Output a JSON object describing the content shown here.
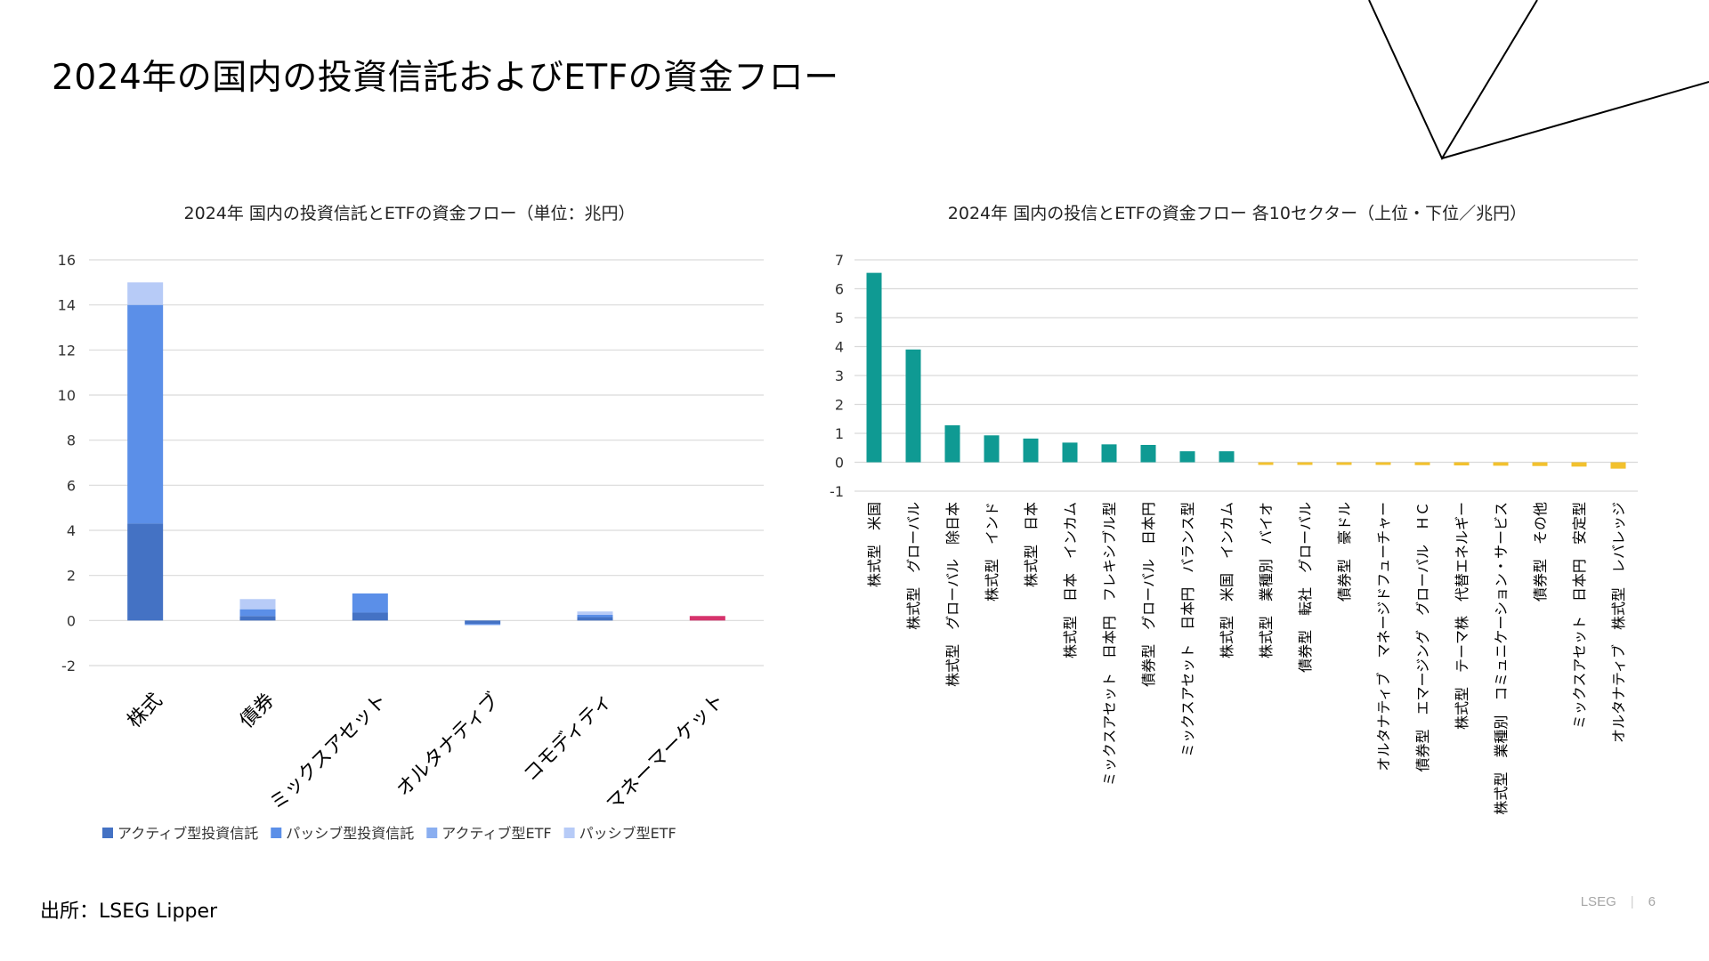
{
  "page": {
    "title": "2024年の国内の投資信託およびETFの資金フロー",
    "source": "出所：LSEG Lipper",
    "footer_brand": "LSEG",
    "footer_separator": "|",
    "page_number": "6"
  },
  "chart_data": [
    {
      "type": "bar",
      "stacked": true,
      "title": "2024年 国内の投資信託とETFの資金フロー（単位：兆円）",
      "xlabel": "",
      "ylabel": "",
      "ylim": [
        -2,
        16
      ],
      "yticks": [
        -2,
        0,
        2,
        4,
        6,
        8,
        10,
        12,
        14,
        16
      ],
      "grid": true,
      "legend_position": "bottom",
      "categories": [
        "株式",
        "債券",
        "ミックスアセット",
        "オルタナティブ",
        "コモディティ",
        "マネーマーケット"
      ],
      "series": [
        {
          "name": "アクティブ型投資信託",
          "color": "#4472c4",
          "values": [
            4.3,
            0.2,
            0.35,
            -0.15,
            0.15,
            0
          ]
        },
        {
          "name": "パッシブ型投資信託",
          "color": "#5b8fe8",
          "values": [
            9.7,
            0.3,
            0.85,
            -0.05,
            0.1,
            0
          ]
        },
        {
          "name": "アクティブ型ETF",
          "color": "#8aaef0",
          "values": [
            0,
            0,
            0,
            0,
            0,
            0
          ]
        },
        {
          "name": "パッシブ型ETF",
          "color": "#b7cbf7",
          "values": [
            1.0,
            0.45,
            0,
            0,
            0.15,
            0
          ]
        }
      ],
      "highlight": {
        "category": "マネーマーケット",
        "value": 0.2,
        "color": "#d6336c"
      }
    },
    {
      "type": "bar",
      "title": "2024年 国内の投信とETFの資金フロー 各10セクター（上位・下位／兆円）",
      "xlabel": "",
      "ylabel": "",
      "ylim": [
        -1,
        7
      ],
      "yticks": [
        -1,
        0,
        1,
        2,
        3,
        4,
        5,
        6,
        7
      ],
      "grid": true,
      "positive_color": "#0f9a93",
      "negative_color": "#f2c12e",
      "categories": [
        "株式型　米国",
        "株式型　グローバル",
        "株式型　グローバル　除日本",
        "株式型　インド",
        "株式型　日本",
        "株式型　日本　インカム",
        "ミックスアセット　日本円　フレキシブル型",
        "債券型　グローバル　日本円",
        "ミックスアセット　日本円　バランス型",
        "株式型　米国　インカム",
        "株式型　業種別　バイオ",
        "債券型　転社　グローバル",
        "債券型　豪ドル",
        "オルタナティブ　マネージドフューチャー",
        "債券型　エマージング　グローバル　ＨＣ",
        "株式型　テーマ株　代替エネルギー",
        "株式型　業種別　コミュニケーション・サービス",
        "債券型　その他",
        "ミックスアセット　日本円　安定型",
        "オルタナティブ　株式型　レバレッジ"
      ],
      "values": [
        6.55,
        3.9,
        1.28,
        0.93,
        0.82,
        0.68,
        0.62,
        0.6,
        0.38,
        0.38,
        -0.06,
        -0.07,
        -0.08,
        -0.09,
        -0.1,
        -0.11,
        -0.12,
        -0.13,
        -0.15,
        -0.22
      ]
    }
  ]
}
